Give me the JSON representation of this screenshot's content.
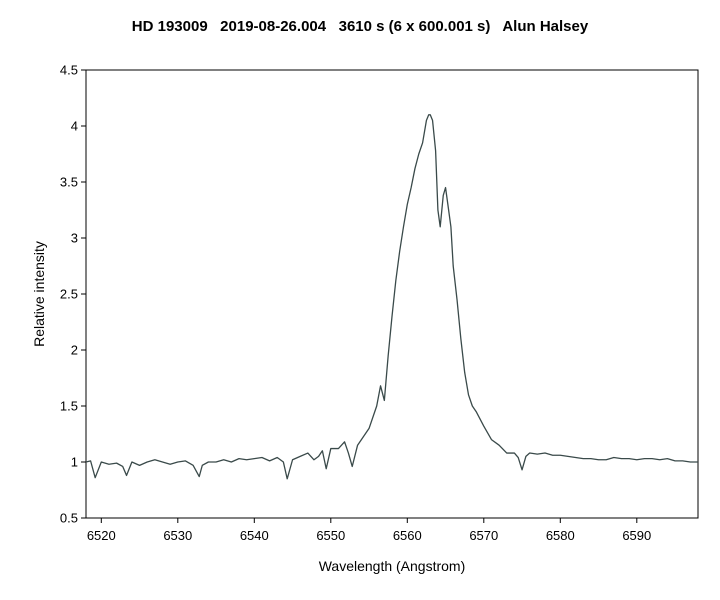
{
  "title": "HD 193009   2019-08-26.004   3610 s (6 x 600.001 s)   Alun Halsey",
  "chart_data": {
    "type": "line",
    "xlabel": "Wavelength (Angstrom)",
    "ylabel": "Relative intensity",
    "xlim": [
      6518,
      6598
    ],
    "ylim": [
      0.5,
      4.5
    ],
    "xticks": [
      6520,
      6530,
      6540,
      6550,
      6560,
      6570,
      6580,
      6590
    ],
    "yticks": [
      0.5,
      1,
      1.5,
      2,
      2.5,
      3,
      3.5,
      4,
      4.5
    ],
    "ytick_labels": [
      "0.5",
      "1",
      "1.5",
      "2",
      "2.5",
      "3",
      "3.5",
      "4",
      "4.5"
    ],
    "grid": false,
    "line_color": "#3a4a4a",
    "series": [
      {
        "x": [
          6518.0,
          6518.6,
          6519.2,
          6520.0,
          6521.0,
          6522.0,
          6522.8,
          6523.3,
          6524.0,
          6525.0,
          6526.0,
          6527.0,
          6528.0,
          6529.0,
          6530.0,
          6531.0,
          6532.0,
          6532.8,
          6533.2,
          6534.0,
          6535.0,
          6536.0,
          6537.0,
          6538.0,
          6539.0,
          6540.0,
          6541.0,
          6542.0,
          6543.0,
          6543.8,
          6544.3,
          6545.0,
          6546.0,
          6547.0,
          6547.8,
          6548.4,
          6548.9,
          6549.4,
          6550.0,
          6551.0,
          6551.8,
          6552.3,
          6552.8,
          6553.5,
          6554.0,
          6555.0,
          6556.0,
          6556.5,
          6557.0,
          6557.5,
          6558.0,
          6558.5,
          6559.0,
          6559.5,
          6560.0,
          6560.5,
          6561.0,
          6561.5,
          6562.0,
          6562.5,
          6562.8,
          6563.0,
          6563.3,
          6563.7,
          6564.0,
          6564.3,
          6564.7,
          6565.0,
          6565.3,
          6565.7,
          6566.0,
          6566.5,
          6567.0,
          6567.5,
          6568.0,
          6568.5,
          6569.0,
          6570.0,
          6571.0,
          6572.0,
          6573.0,
          6574.0,
          6574.5,
          6575.0,
          6575.5,
          6576.0,
          6577.0,
          6578.0,
          6579.0,
          6580.0,
          6581.0,
          6582.0,
          6583.0,
          6584.0,
          6585.0,
          6586.0,
          6587.0,
          6588.0,
          6589.0,
          6590.0,
          6591.0,
          6592.0,
          6593.0,
          6594.0,
          6595.0,
          6596.0,
          6597.0,
          6598.0
        ],
        "y": [
          1.0,
          1.01,
          0.86,
          1.0,
          0.98,
          0.99,
          0.96,
          0.88,
          1.0,
          0.97,
          1.0,
          1.02,
          1.0,
          0.98,
          1.0,
          1.01,
          0.97,
          0.87,
          0.97,
          1.0,
          1.0,
          1.02,
          1.0,
          1.03,
          1.02,
          1.03,
          1.04,
          1.01,
          1.04,
          1.0,
          0.85,
          1.02,
          1.05,
          1.08,
          1.02,
          1.05,
          1.1,
          0.94,
          1.12,
          1.12,
          1.18,
          1.08,
          0.96,
          1.15,
          1.2,
          1.3,
          1.5,
          1.68,
          1.55,
          1.95,
          2.3,
          2.62,
          2.88,
          3.1,
          3.3,
          3.45,
          3.62,
          3.75,
          3.85,
          4.05,
          4.1,
          4.1,
          4.05,
          3.78,
          3.25,
          3.1,
          3.38,
          3.45,
          3.3,
          3.1,
          2.75,
          2.45,
          2.1,
          1.8,
          1.6,
          1.5,
          1.45,
          1.32,
          1.2,
          1.15,
          1.08,
          1.08,
          1.04,
          0.93,
          1.05,
          1.08,
          1.07,
          1.08,
          1.06,
          1.06,
          1.05,
          1.04,
          1.03,
          1.03,
          1.02,
          1.02,
          1.04,
          1.03,
          1.03,
          1.02,
          1.03,
          1.03,
          1.02,
          1.03,
          1.01,
          1.01,
          1.0,
          1.0
        ]
      }
    ]
  }
}
